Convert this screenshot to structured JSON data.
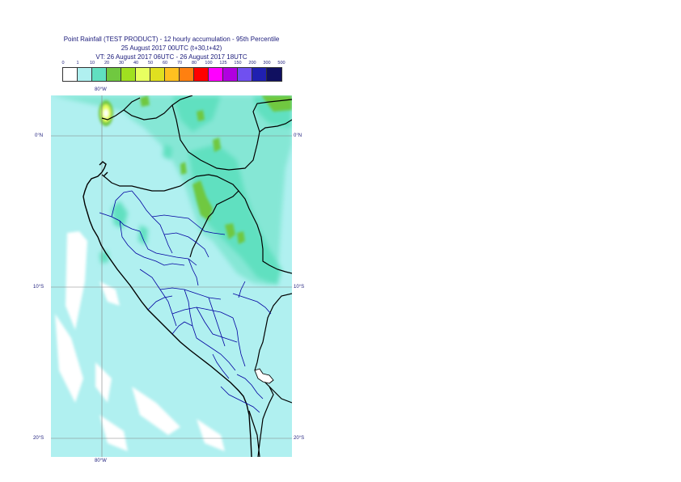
{
  "title": {
    "line1": "Point Rainfall (TEST PRODUCT) - 12 hourly accumulation - 95th Percentile",
    "line2": "25 August 2017 00UTC (t+30,t+42)",
    "line3": "VT: 26 August 2017 06UTC - 26 August 2017 18UTC"
  },
  "legend": {
    "labels": [
      "0",
      "1",
      "10",
      "20",
      "30",
      "40",
      "50",
      "60",
      "70",
      "80",
      "100",
      "125",
      "150",
      "200",
      "300",
      "500"
    ],
    "colors": [
      "#ffffff",
      "#b0f0f0",
      "#60e0c0",
      "#70c840",
      "#a0e020",
      "#e8ff60",
      "#e0e020",
      "#ffc020",
      "#ff8010",
      "#ff0000",
      "#ff00ff",
      "#b000e0",
      "#7050f0",
      "#2020b0",
      "#101060"
    ]
  },
  "map": {
    "top_lon_label": "80°W",
    "bottom_lon_label": "80°W",
    "lat_labels": [
      "0°N",
      "10°S",
      "20°S"
    ],
    "colors": {
      "sea_light": "#b0f0f0",
      "land_band": "#60e0c0",
      "heavy": "#70c840",
      "very_heavy": "#e8ff60",
      "coast": "#000000",
      "borders": "#0000a0",
      "grid": "#808080"
    }
  }
}
